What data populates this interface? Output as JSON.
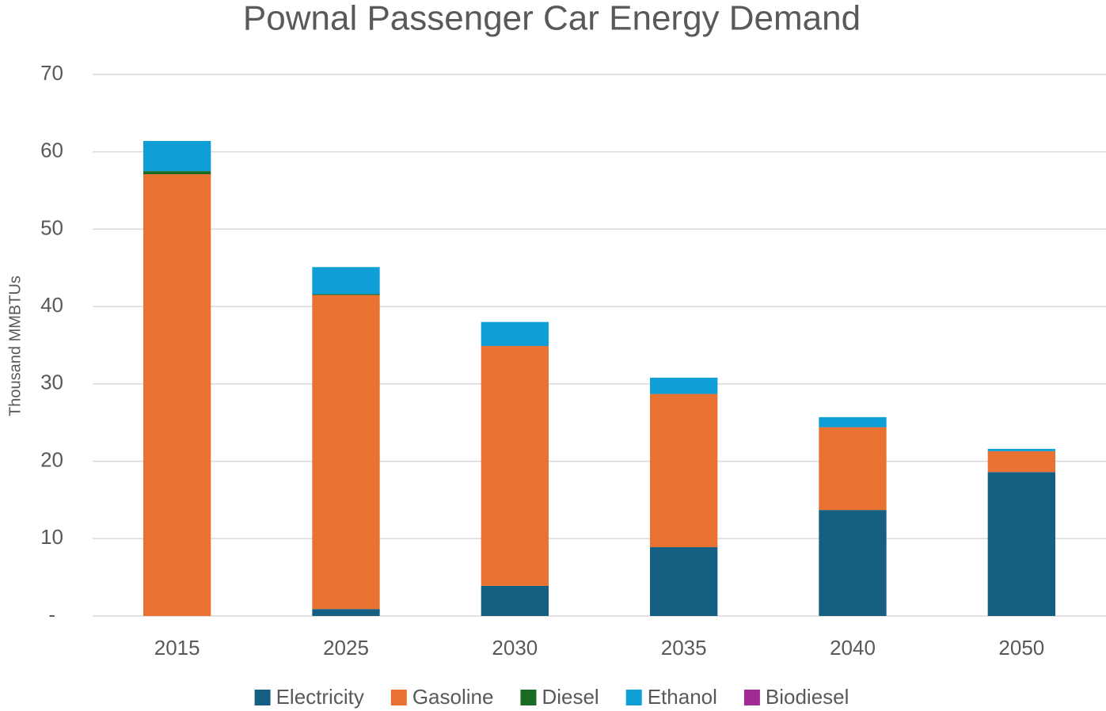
{
  "chart_data": {
    "type": "stacked_bar",
    "title": "Pownal Passenger Car Energy Demand",
    "y_label": "Thousand MMBTUs",
    "categories": [
      "2015",
      "2025",
      "2030",
      "2035",
      "2040",
      "2050"
    ],
    "series": [
      {
        "name": "Electricity",
        "color": "#156082",
        "values": [
          0,
          0.9,
          3.9,
          8.9,
          13.7,
          18.6
        ]
      },
      {
        "name": "Gasoline",
        "color": "#e97132",
        "values": [
          57.1,
          40.6,
          31.0,
          19.8,
          10.7,
          2.7
        ]
      },
      {
        "name": "Diesel",
        "color": "#196b24",
        "values": [
          0.4,
          0.1,
          0,
          0,
          0,
          0
        ]
      },
      {
        "name": "Ethanol",
        "color": "#0f9ed5",
        "values": [
          3.9,
          3.5,
          3.1,
          2.1,
          1.3,
          0.3
        ]
      },
      {
        "name": "Biodiesel",
        "color": "#a02b93",
        "values": [
          0,
          0,
          0,
          0,
          0,
          0
        ]
      }
    ],
    "ylim": [
      0,
      70
    ],
    "yticks": [
      {
        "value": 0,
        "label": "-"
      },
      10,
      20,
      30,
      40,
      50,
      60,
      70
    ],
    "grid": true,
    "legend": "bottom"
  }
}
